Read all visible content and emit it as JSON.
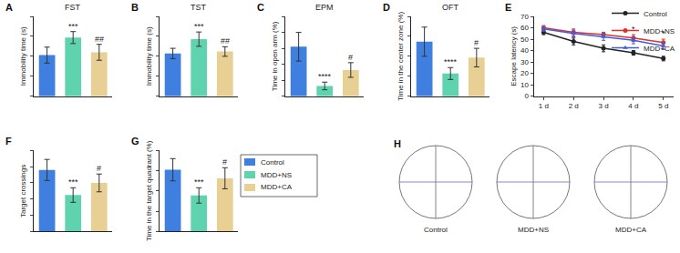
{
  "chart_data": [
    {
      "type": "bar",
      "label": "A",
      "title": "FST",
      "y_label": "Immobility time (s)",
      "categories": [
        "Control",
        "MDD+NS",
        "MDD+CA"
      ],
      "values": [
        103,
        147,
        110
      ],
      "errors": [
        20,
        15,
        20
      ],
      "colors": [
        "#3f7fe0",
        "#5fd3ae",
        "#e8cf94"
      ],
      "ylim": [
        0,
        200
      ],
      "yticks": [
        0,
        50,
        100,
        150,
        200
      ],
      "tick_labels": false,
      "annotations": [
        {
          "category": "MDD+NS",
          "text": "***"
        },
        {
          "category": "MDD+CA",
          "text": "##"
        }
      ]
    },
    {
      "type": "bar",
      "label": "B",
      "title": "TST",
      "y_label": "Immobility time (s)",
      "categories": [
        "Control",
        "MDD+NS",
        "MDD+CA"
      ],
      "values": [
        107,
        143,
        112
      ],
      "errors": [
        13,
        18,
        12
      ],
      "colors": [
        "#3f7fe0",
        "#5fd3ae",
        "#e8cf94"
      ],
      "ylim": [
        0,
        200
      ],
      "yticks": [
        0,
        50,
        100,
        150,
        200
      ],
      "tick_labels": false,
      "annotations": [
        {
          "category": "MDD+NS",
          "text": "***"
        },
        {
          "category": "MDD+CA",
          "text": "##"
        }
      ]
    },
    {
      "type": "bar",
      "label": "C",
      "title": "EPM",
      "y_label": "Time in open arm (%)",
      "categories": [
        "Control",
        "MDD+NS",
        "MDD+CA"
      ],
      "values": [
        15.5,
        3.2,
        8.2
      ],
      "errors": [
        4.5,
        1.2,
        2.3
      ],
      "colors": [
        "#3f7fe0",
        "#5fd3ae",
        "#e8cf94"
      ],
      "ylim": [
        0,
        25
      ],
      "yticks": [
        0,
        5,
        10,
        15,
        20,
        25
      ],
      "tick_labels": false,
      "annotations": [
        {
          "category": "MDD+NS",
          "text": "****"
        },
        {
          "category": "MDD+CA",
          "text": "#"
        }
      ]
    },
    {
      "type": "bar",
      "label": "D",
      "title": "OFT",
      "y_label": "Time in the center zone (%)",
      "categories": [
        "Control",
        "MDD+NS",
        "MDD+CA"
      ],
      "values": [
        8.2,
        3.4,
        5.8
      ],
      "errors": [
        2.2,
        0.9,
        1.4
      ],
      "colors": [
        "#3f7fe0",
        "#5fd3ae",
        "#e8cf94"
      ],
      "ylim": [
        0,
        12
      ],
      "yticks": [
        0,
        3,
        6,
        9,
        12
      ],
      "tick_labels": false,
      "annotations": [
        {
          "category": "MDD+NS",
          "text": "****"
        },
        {
          "category": "MDD+CA",
          "text": "#"
        }
      ]
    },
    {
      "type": "line",
      "label": "E",
      "y_label": "Escape latency (s)",
      "categories": [
        "1 d",
        "2 d",
        "3 d",
        "4 d",
        "5 d"
      ],
      "series": [
        {
          "name": "Control",
          "color": "#222222",
          "marker": "circle",
          "values": [
            56,
            48,
            42,
            38,
            33
          ],
          "errors": [
            2,
            3,
            3,
            2,
            2
          ]
        },
        {
          "name": "MDD+NS",
          "color": "#e0302a",
          "marker": "circle",
          "values": [
            60,
            56,
            54,
            51,
            47
          ],
          "errors": [
            2,
            3,
            2,
            3,
            3
          ]
        },
        {
          "name": "MDD+CA",
          "color": "#3a5fe0",
          "marker": "triangle-up",
          "values": [
            59,
            55,
            52,
            49,
            44
          ],
          "errors": [
            2,
            3,
            3,
            3,
            3
          ]
        }
      ],
      "ylim": [
        0,
        70
      ],
      "yticks": [
        0,
        10,
        20,
        30,
        40,
        50,
        60,
        70
      ],
      "legend": "top right",
      "annotations": [
        {
          "category": "4 d",
          "text": "*"
        },
        {
          "category": "5 d",
          "text": "*"
        }
      ]
    },
    {
      "type": "bar",
      "label": "F",
      "y_label": "Target crossings",
      "categories": [
        "Control",
        "MDD+NS",
        "MDD+CA"
      ],
      "values": [
        3.8,
        2.25,
        3.0
      ],
      "errors": [
        0.65,
        0.45,
        0.55
      ],
      "colors": [
        "#3f7fe0",
        "#5fd3ae",
        "#e8cf94"
      ],
      "ylim": [
        0,
        5
      ],
      "yticks": [
        0,
        1,
        2,
        3,
        4,
        5
      ],
      "tick_labels": false,
      "annotations": [
        {
          "category": "MDD+NS",
          "text": "***"
        },
        {
          "category": "MDD+CA",
          "text": "#"
        }
      ]
    },
    {
      "type": "bar",
      "label": "G",
      "y_label": "Time in the target quadrant (%)",
      "categories": [
        "Control",
        "MDD+NS",
        "MDD+CA"
      ],
      "values": [
        30.5,
        17.8,
        26.3
      ],
      "errors": [
        5.5,
        3.8,
        5.2
      ],
      "colors": [
        "#3f7fe0",
        "#5fd3ae",
        "#e8cf94"
      ],
      "ylim": [
        0,
        40
      ],
      "yticks": [
        0,
        10,
        20,
        30,
        40
      ],
      "tick_labels": false,
      "annotations": [
        {
          "category": "MDD+NS",
          "text": "***"
        },
        {
          "category": "MDD+CA",
          "text": "#"
        }
      ]
    },
    {
      "type": "legend",
      "categories": [
        "Control",
        "MDD+NS",
        "MDD+CA"
      ],
      "colors": [
        "#3f7fe0",
        "#5fd3ae",
        "#e8cf94"
      ]
    },
    {
      "type": "trajectory",
      "label": "H",
      "categories": [
        "Control",
        "MDD+NS",
        "MDD+CA"
      ]
    }
  ]
}
